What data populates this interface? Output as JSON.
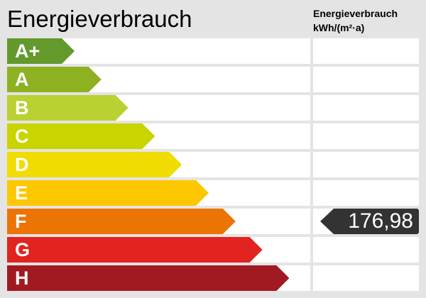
{
  "header": {
    "title": "Energieverbrauch",
    "column_title": "Energieverbrauch",
    "column_unit": "kWh/(m²·a)"
  },
  "classes": [
    {
      "label": "A+",
      "color": "#64992b"
    },
    {
      "label": "A",
      "color": "#8db121"
    },
    {
      "label": "B",
      "color": "#bbd032"
    },
    {
      "label": "C",
      "color": "#cad400"
    },
    {
      "label": "D",
      "color": "#f0dc00"
    },
    {
      "label": "E",
      "color": "#fdc800"
    },
    {
      "label": "F",
      "color": "#ec7405"
    },
    {
      "label": "G",
      "color": "#e2231f"
    },
    {
      "label": "H",
      "color": "#a21a21"
    }
  ],
  "value": {
    "text": "176,98",
    "class": "F",
    "color": "#333333"
  }
}
